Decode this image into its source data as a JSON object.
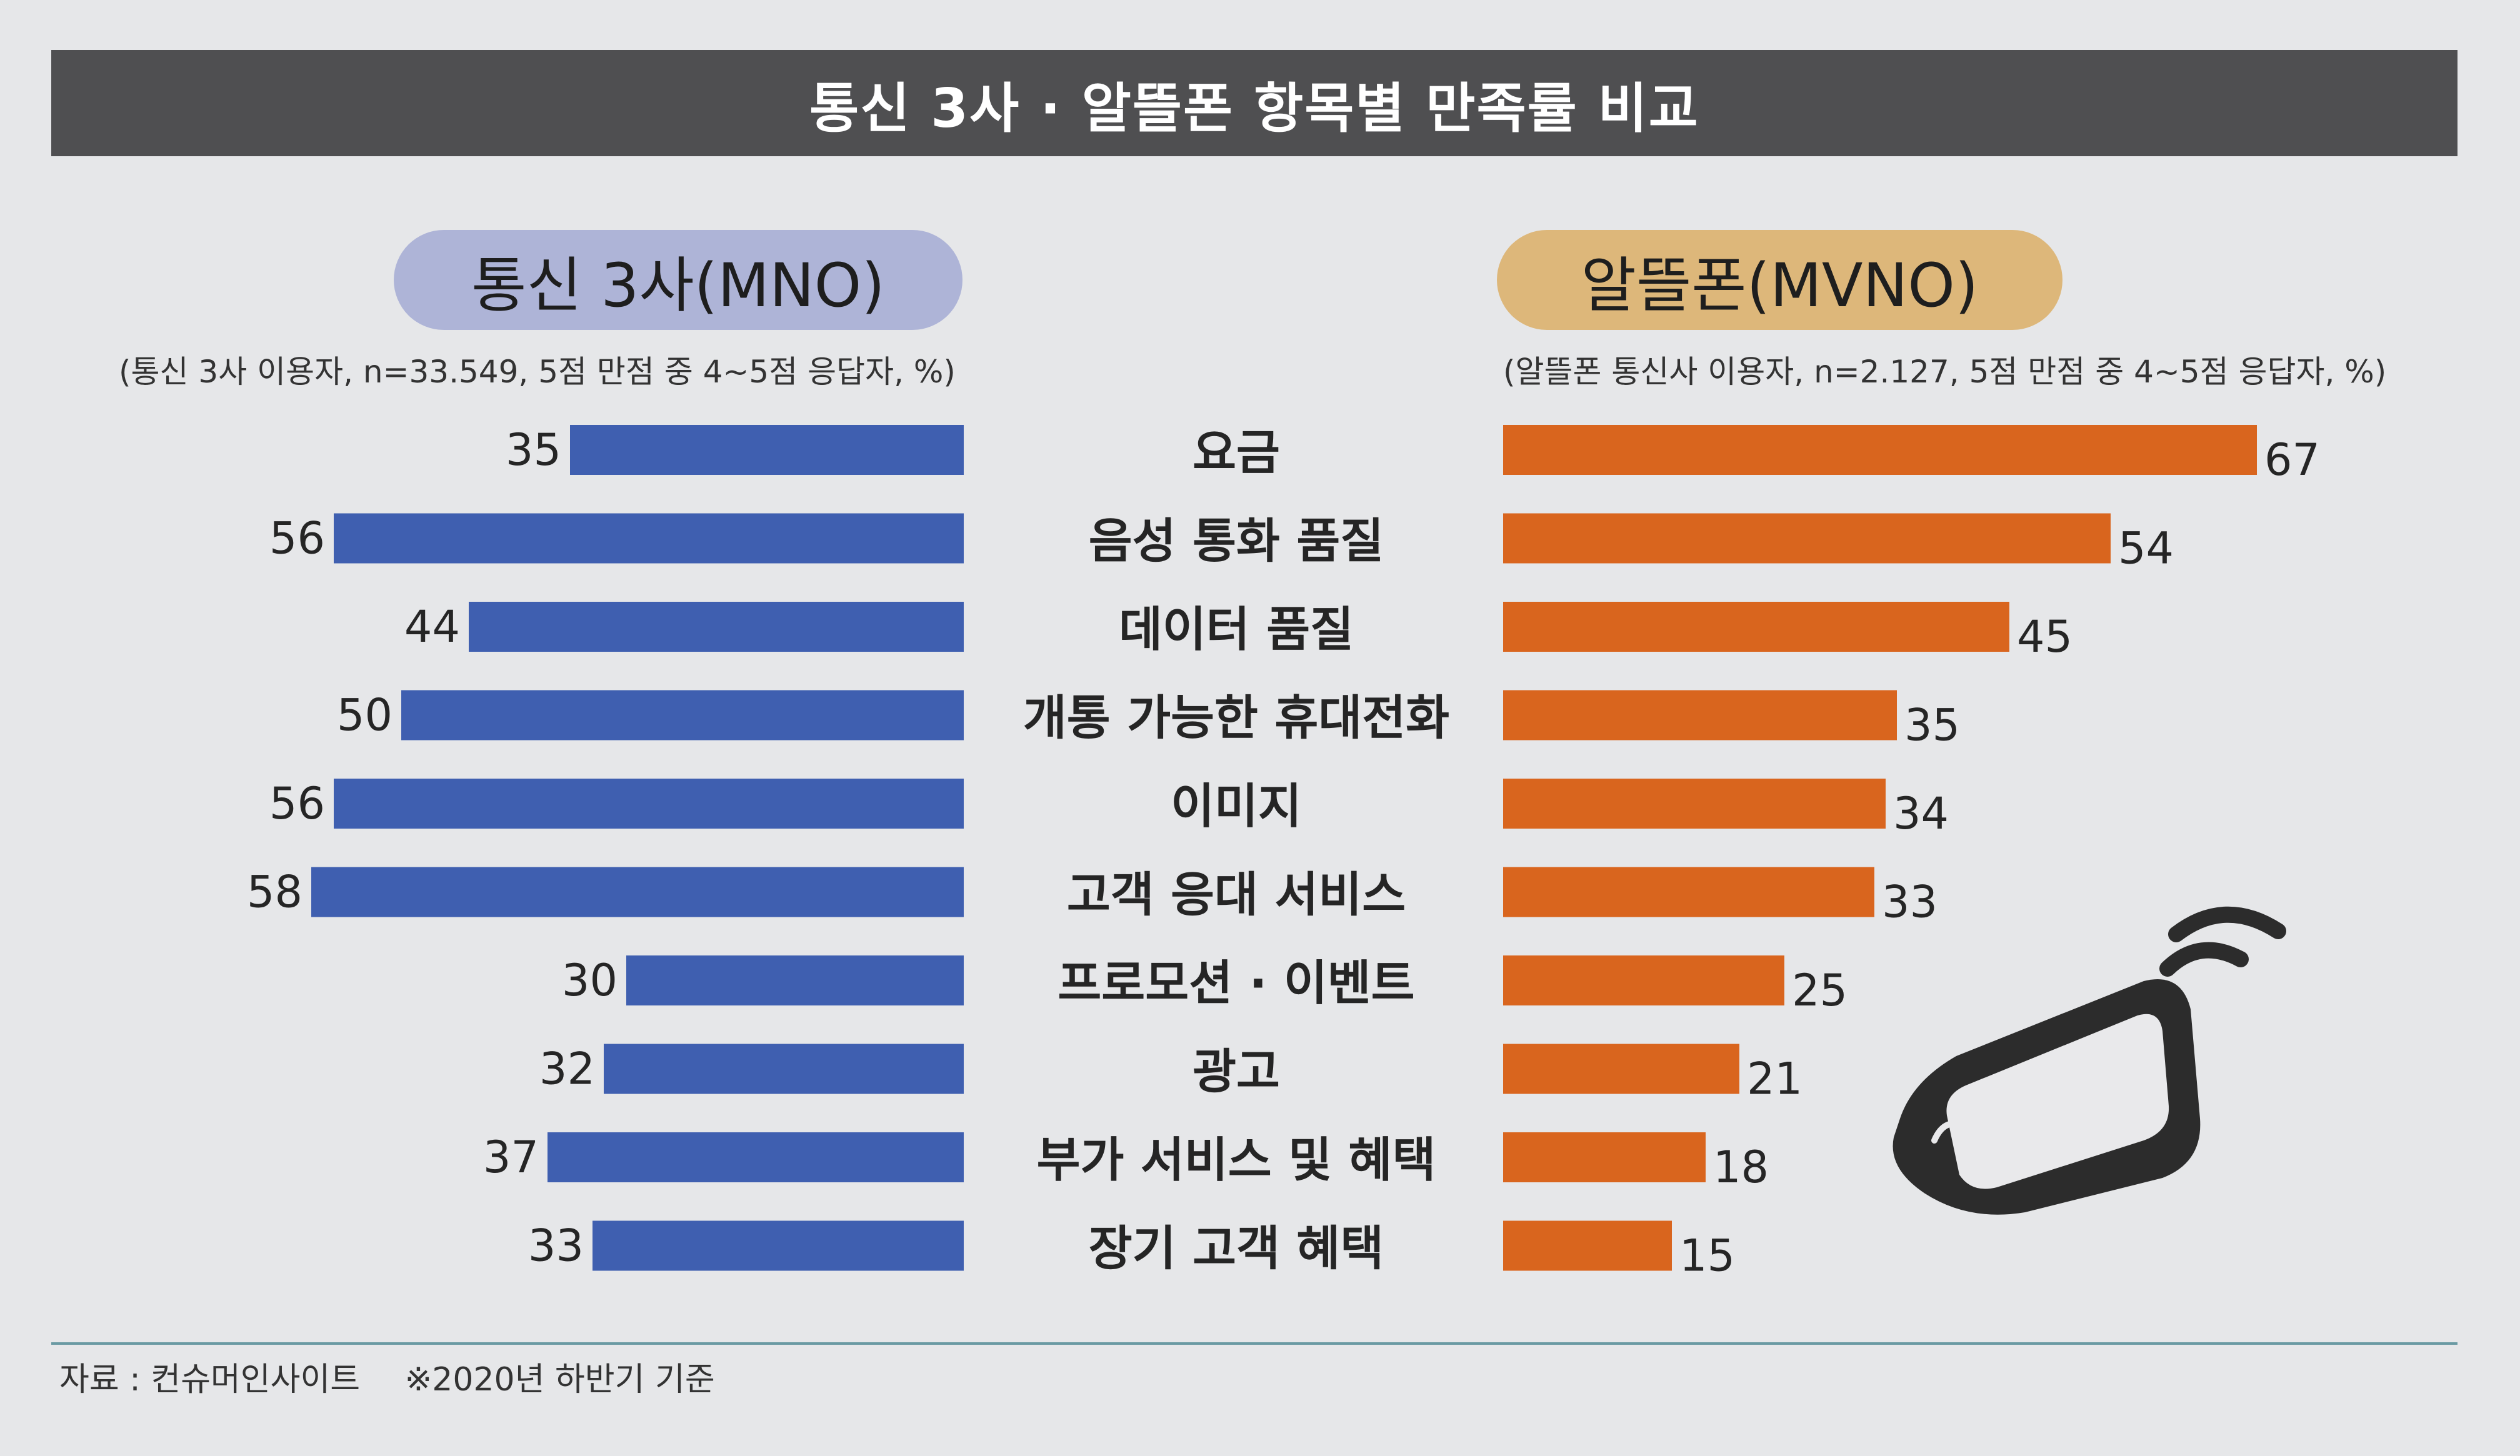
{
  "title": "통신 3사 · 알뜰폰 항목별 만족률 비교",
  "left_panel": {
    "label": "통신 3사(MNO)",
    "note": "(통신 3사 이용자, n=33.549, 5점 만점 중 4~5점 응답자, %)"
  },
  "right_panel": {
    "label": "알뜰폰(MVNO)",
    "note": "(알뜰폰 통신사 이용자, n=2.127, 5점 만점 중 4~5점 응답자, %)"
  },
  "source": "자료 : 컨슈머인사이트",
  "footnote": "※2020년 하반기 기준",
  "colors": {
    "mno_bar": "#3f5fb0",
    "mvno_bar": "#d9651e",
    "title_bar": "#4f4f51",
    "mno_pill": "#aeb4d7",
    "mvno_pill": "#ddb77a"
  },
  "icons": [
    "mobile-phone-icon",
    "signal-waves-icon"
  ],
  "chart_data": {
    "type": "bar",
    "orientation": "horizontal",
    "layout": "back-to-back",
    "categories": [
      "요금",
      "음성 통화 품질",
      "데이터 품질",
      "개통 가능한 휴대전화",
      "이미지",
      "고객 응대 서비스",
      "프로모션 · 이벤트",
      "광고",
      "부가 서비스 및 혜택",
      "장기 고객 혜택"
    ],
    "series": [
      {
        "name": "통신 3사(MNO)",
        "values": [
          35,
          56,
          44,
          50,
          56,
          58,
          30,
          32,
          37,
          33
        ]
      },
      {
        "name": "알뜰폰(MVNO)",
        "values": [
          67,
          54,
          45,
          35,
          34,
          33,
          25,
          21,
          18,
          15
        ]
      }
    ],
    "unit": "%",
    "xlim": [
      0,
      70
    ],
    "grid": false,
    "data_labels": true
  }
}
